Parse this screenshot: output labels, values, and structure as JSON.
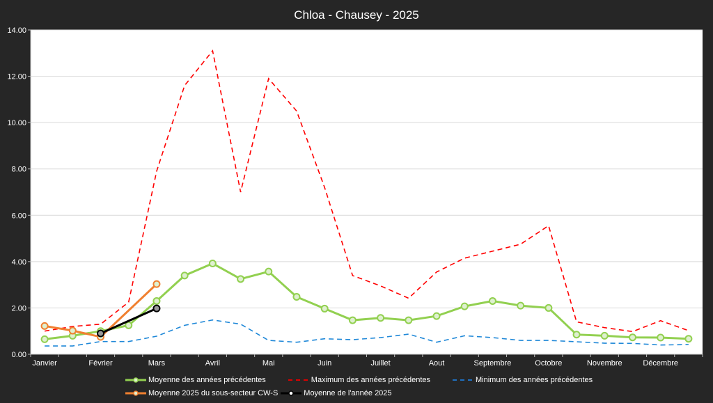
{
  "chart_data": {
    "type": "line",
    "title": "Chloa  - Chausey - 2025",
    "xlabel": "",
    "ylabel": "",
    "ylim": [
      0,
      14
    ],
    "yticks": [
      "0.00",
      "2.00",
      "4.00",
      "6.00",
      "8.00",
      "10.00",
      "12.00",
      "14.00"
    ],
    "month_labels": [
      "Janvier",
      "Février",
      "Mars",
      "Avril",
      "Mai",
      "Juin",
      "Juillet",
      "Aout",
      "Septembre",
      "Octobre",
      "Novembre",
      "Décembre"
    ],
    "grid": true,
    "legend_position": "bottom",
    "series": [
      {
        "name": "Moyenne des années précédentes",
        "color": "#92d050",
        "style": "solid-markers",
        "values": [
          0.65,
          0.8,
          1.0,
          1.25,
          2.3,
          3.4,
          3.92,
          3.25,
          3.57,
          2.48,
          1.97,
          1.47,
          1.57,
          1.47,
          1.65,
          2.07,
          2.3,
          2.1,
          2.0,
          0.85,
          0.8,
          0.73,
          0.72,
          0.67
        ]
      },
      {
        "name": "Maximum des années précédentes",
        "color": "#ff0000",
        "style": "dashed",
        "values": [
          1.0,
          1.2,
          1.3,
          2.25,
          7.9,
          11.6,
          13.1,
          7.0,
          11.9,
          10.5,
          7.2,
          3.4,
          2.95,
          2.42,
          3.55,
          4.15,
          4.45,
          4.75,
          5.55,
          1.4,
          1.15,
          0.98,
          1.45,
          1.02
        ]
      },
      {
        "name": "Minimum des années précédentes",
        "color": "#1f88d8",
        "style": "dashed",
        "values": [
          0.36,
          0.36,
          0.55,
          0.55,
          0.78,
          1.25,
          1.48,
          1.3,
          0.6,
          0.52,
          0.67,
          0.63,
          0.72,
          0.87,
          0.52,
          0.8,
          0.72,
          0.6,
          0.6,
          0.54,
          0.48,
          0.47,
          0.4,
          0.42
        ]
      },
      {
        "name": "Moyenne 2025 du sous-secteur CW-S",
        "color": "#f08030",
        "style": "solid-markers",
        "values": [
          1.22,
          1.02,
          0.75,
          null,
          3.03,
          null,
          null,
          null,
          null,
          null,
          null,
          null,
          null,
          null,
          null,
          null,
          null,
          null,
          null,
          null,
          null,
          null,
          null,
          null
        ]
      },
      {
        "name": "Moyenne de l'année 2025",
        "color": "#000000",
        "style": "solid-markers",
        "values": [
          null,
          null,
          0.9,
          null,
          1.98,
          null,
          null,
          null,
          null,
          null,
          null,
          null,
          null,
          null,
          null,
          null,
          null,
          null,
          null,
          null,
          null,
          null,
          null,
          null
        ]
      }
    ]
  }
}
